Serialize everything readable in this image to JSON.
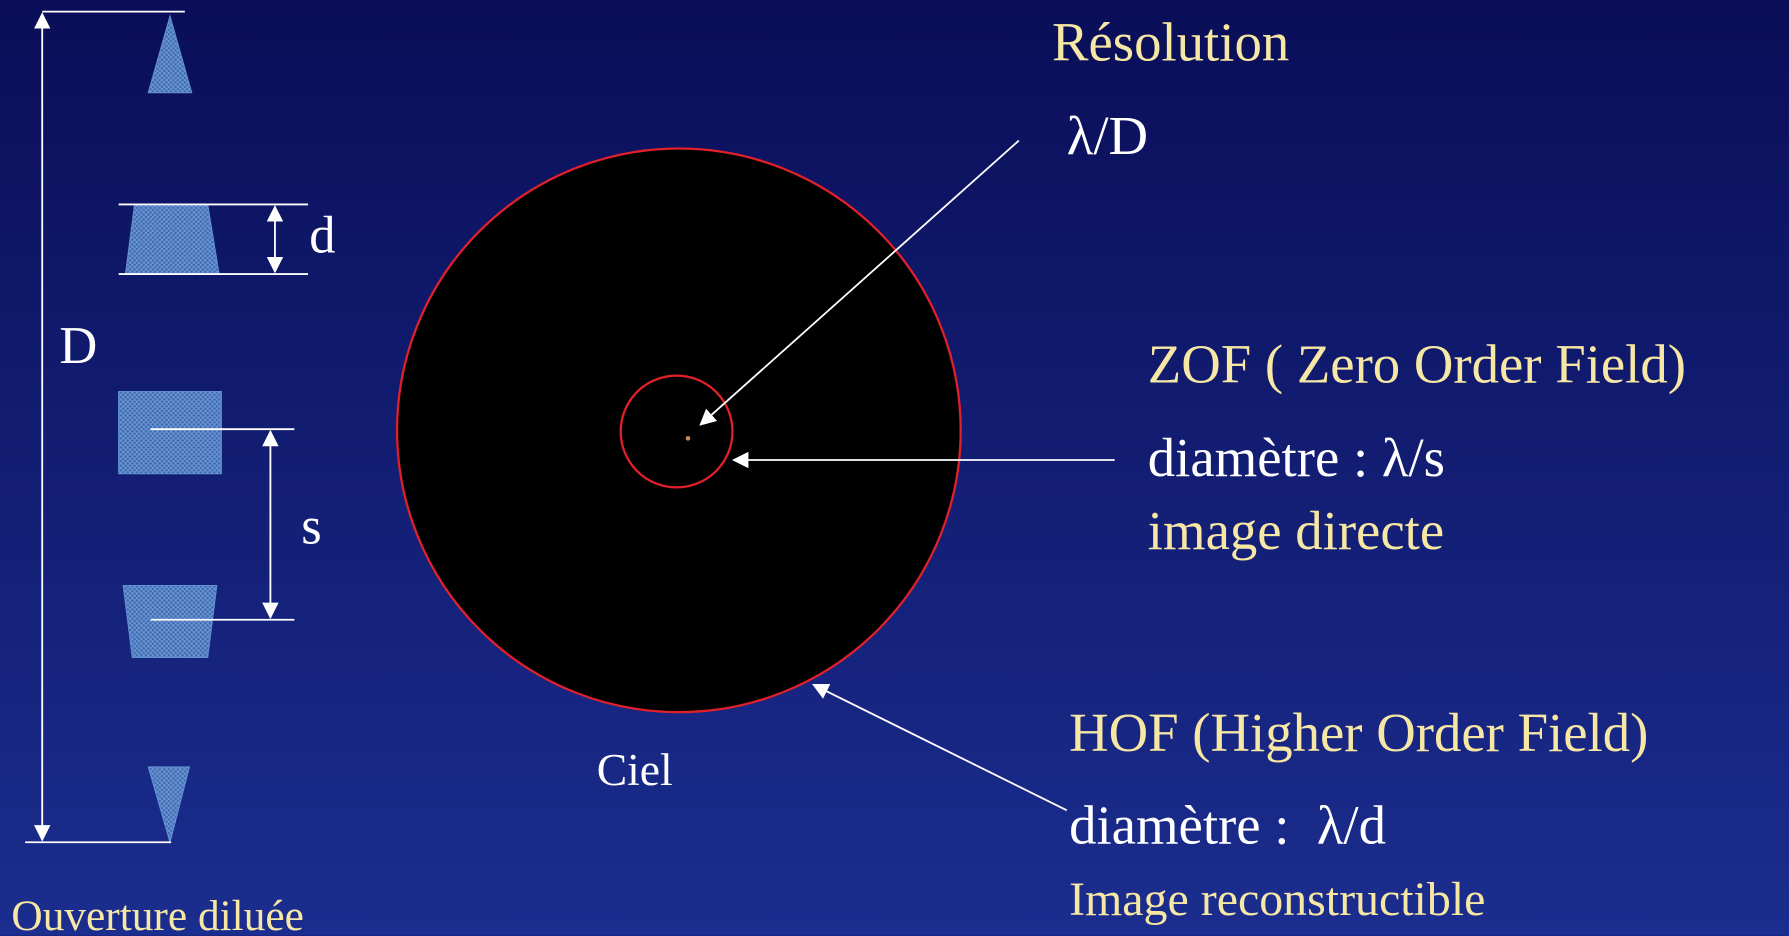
{
  "title": "Résolution",
  "resolution_formula": "λ/D",
  "aperture": {
    "d_label": "d",
    "D_label": "D",
    "s_label": "s",
    "caption": "Ouverture diluée"
  },
  "sky": {
    "label": "Ciel"
  },
  "zof": {
    "title": "ZOF ( Zero Order Field)",
    "diameter": "diamètre : λ/s",
    "description": "image directe"
  },
  "hof": {
    "title": "HOF (Higher Order Field)",
    "diameter": "diamètre :  λ/d",
    "description": "Image reconstructible"
  }
}
